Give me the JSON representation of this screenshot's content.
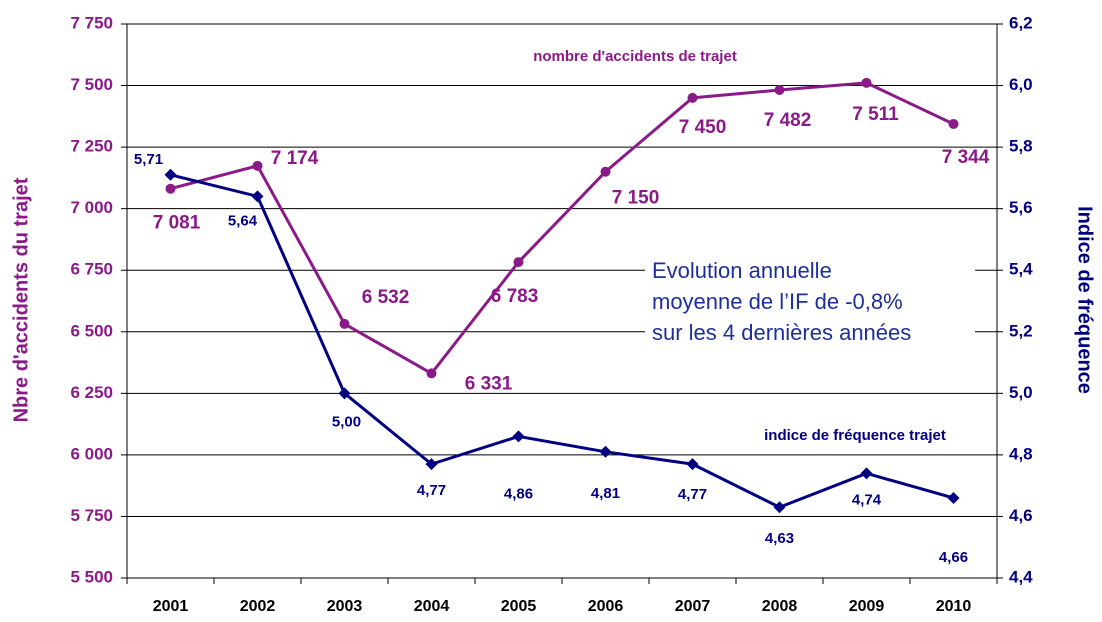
{
  "chart_data": {
    "type": "line",
    "categories": [
      "2001",
      "2002",
      "2003",
      "2004",
      "2005",
      "2006",
      "2007",
      "2008",
      "2009",
      "2010"
    ],
    "series": [
      {
        "name": "nombre d'accidents de trajet",
        "color": "#8b1a89",
        "marker": "circle",
        "values": [
          7081,
          7174,
          6532,
          6331,
          6783,
          7150,
          7450,
          7482,
          7511,
          7344
        ],
        "value_labels": [
          "7 081",
          "7 174",
          "6 532",
          "6 331",
          "6 783",
          "7 150",
          "7 450",
          "7 482",
          "7 511",
          "7 344"
        ]
      },
      {
        "name": "indice de fréquence trajet",
        "color": "#000080",
        "marker": "diamond",
        "axis": "y2",
        "values": [
          5.71,
          5.64,
          5.0,
          4.77,
          4.86,
          4.81,
          4.77,
          4.63,
          4.74,
          4.66
        ],
        "value_labels": [
          "5,71",
          "5,64",
          "5,00",
          "4,77",
          "4,86",
          "4,81",
          "4,77",
          "4,63",
          "4,74",
          "4,66"
        ]
      }
    ],
    "ylabel": "Nbre d'accidents du trajet",
    "y2label": "Indice de fréquence",
    "ylim": [
      5500,
      7750
    ],
    "yticks": [
      {
        "value": 5500,
        "label": "5 500"
      },
      {
        "value": 5750,
        "label": "5 750"
      },
      {
        "value": 6000,
        "label": "6 000"
      },
      {
        "value": 6250,
        "label": "6 250"
      },
      {
        "value": 6500,
        "label": "6 500"
      },
      {
        "value": 6750,
        "label": "6 750"
      },
      {
        "value": 7000,
        "label": "7 000"
      },
      {
        "value": 7250,
        "label": "7 250"
      },
      {
        "value": 7500,
        "label": "7 500"
      },
      {
        "value": 7750,
        "label": "7 750"
      }
    ],
    "y2lim": [
      4.4,
      6.2
    ],
    "y2ticks": [
      {
        "value": 4.4,
        "label": "4,4"
      },
      {
        "value": 4.6,
        "label": "4,6"
      },
      {
        "value": 4.8,
        "label": "4,8"
      },
      {
        "value": 5.0,
        "label": "5,0"
      },
      {
        "value": 5.2,
        "label": "5,2"
      },
      {
        "value": 5.4,
        "label": "5,4"
      },
      {
        "value": 5.6,
        "label": "5,6"
      },
      {
        "value": 5.8,
        "label": "5,8"
      },
      {
        "value": 6.0,
        "label": "6,0"
      },
      {
        "value": 6.2,
        "label": "6,2"
      }
    ],
    "grid": true,
    "annotation_lines": [
      "Evolution annuelle",
      "moyenne de l’IF de -0,8%",
      "sur les 4 dernières années"
    ]
  }
}
